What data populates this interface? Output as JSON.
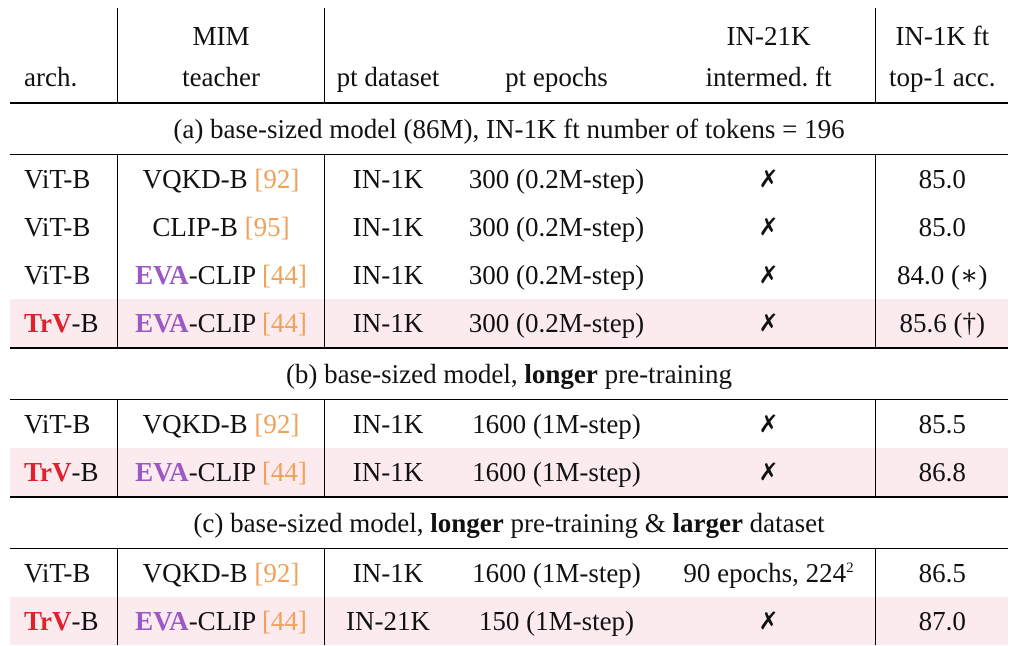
{
  "header": {
    "row1": {
      "col2": "MIM",
      "col5": "IN-21K",
      "col6": "IN-1K ft"
    },
    "row2": {
      "col1": "arch.",
      "col2": "teacher",
      "col3": "pt dataset",
      "col4": "pt epochs",
      "col5": "intermed. ft",
      "col6": "top-1 acc."
    }
  },
  "sections": {
    "a": "(a) base-sized model (86M), IN-1K ft number of tokens = 196",
    "b_pre": "(b) base-sized model, ",
    "b_bold": "longer",
    "b_post": " pre-training",
    "c_pre": "(c) base-sized model, ",
    "c_bold1": "longer",
    "c_mid": " pre-training & ",
    "c_bold2": "larger",
    "c_post": " dataset"
  },
  "labels": {
    "vit_b": "ViT-B",
    "trv": "TrV",
    "trv_suffix": "-B",
    "vqkd": "VQKD-B",
    "clip": "CLIP-B",
    "eva": "EVA",
    "eva_suffix": "-CLIP",
    "ref92": "[92]",
    "ref95": "[95]",
    "ref44": "[44]",
    "in1k": "IN-1K",
    "in21k": "IN-21K",
    "ep300": "300 (0.2M-step)",
    "ep1600": "1600 (1M-step)",
    "ep150": "150 (1M-step)",
    "cross": "✗",
    "ft90": "90 epochs, 224",
    "ft90_sup": "2"
  },
  "acc": {
    "a1": "85.0",
    "a2": "85.0",
    "a3": "84.0 (∗)",
    "a4": "85.6 (†)",
    "b1": "85.5",
    "b2": "86.8",
    "c1": "86.5",
    "c2": "87.0"
  }
}
